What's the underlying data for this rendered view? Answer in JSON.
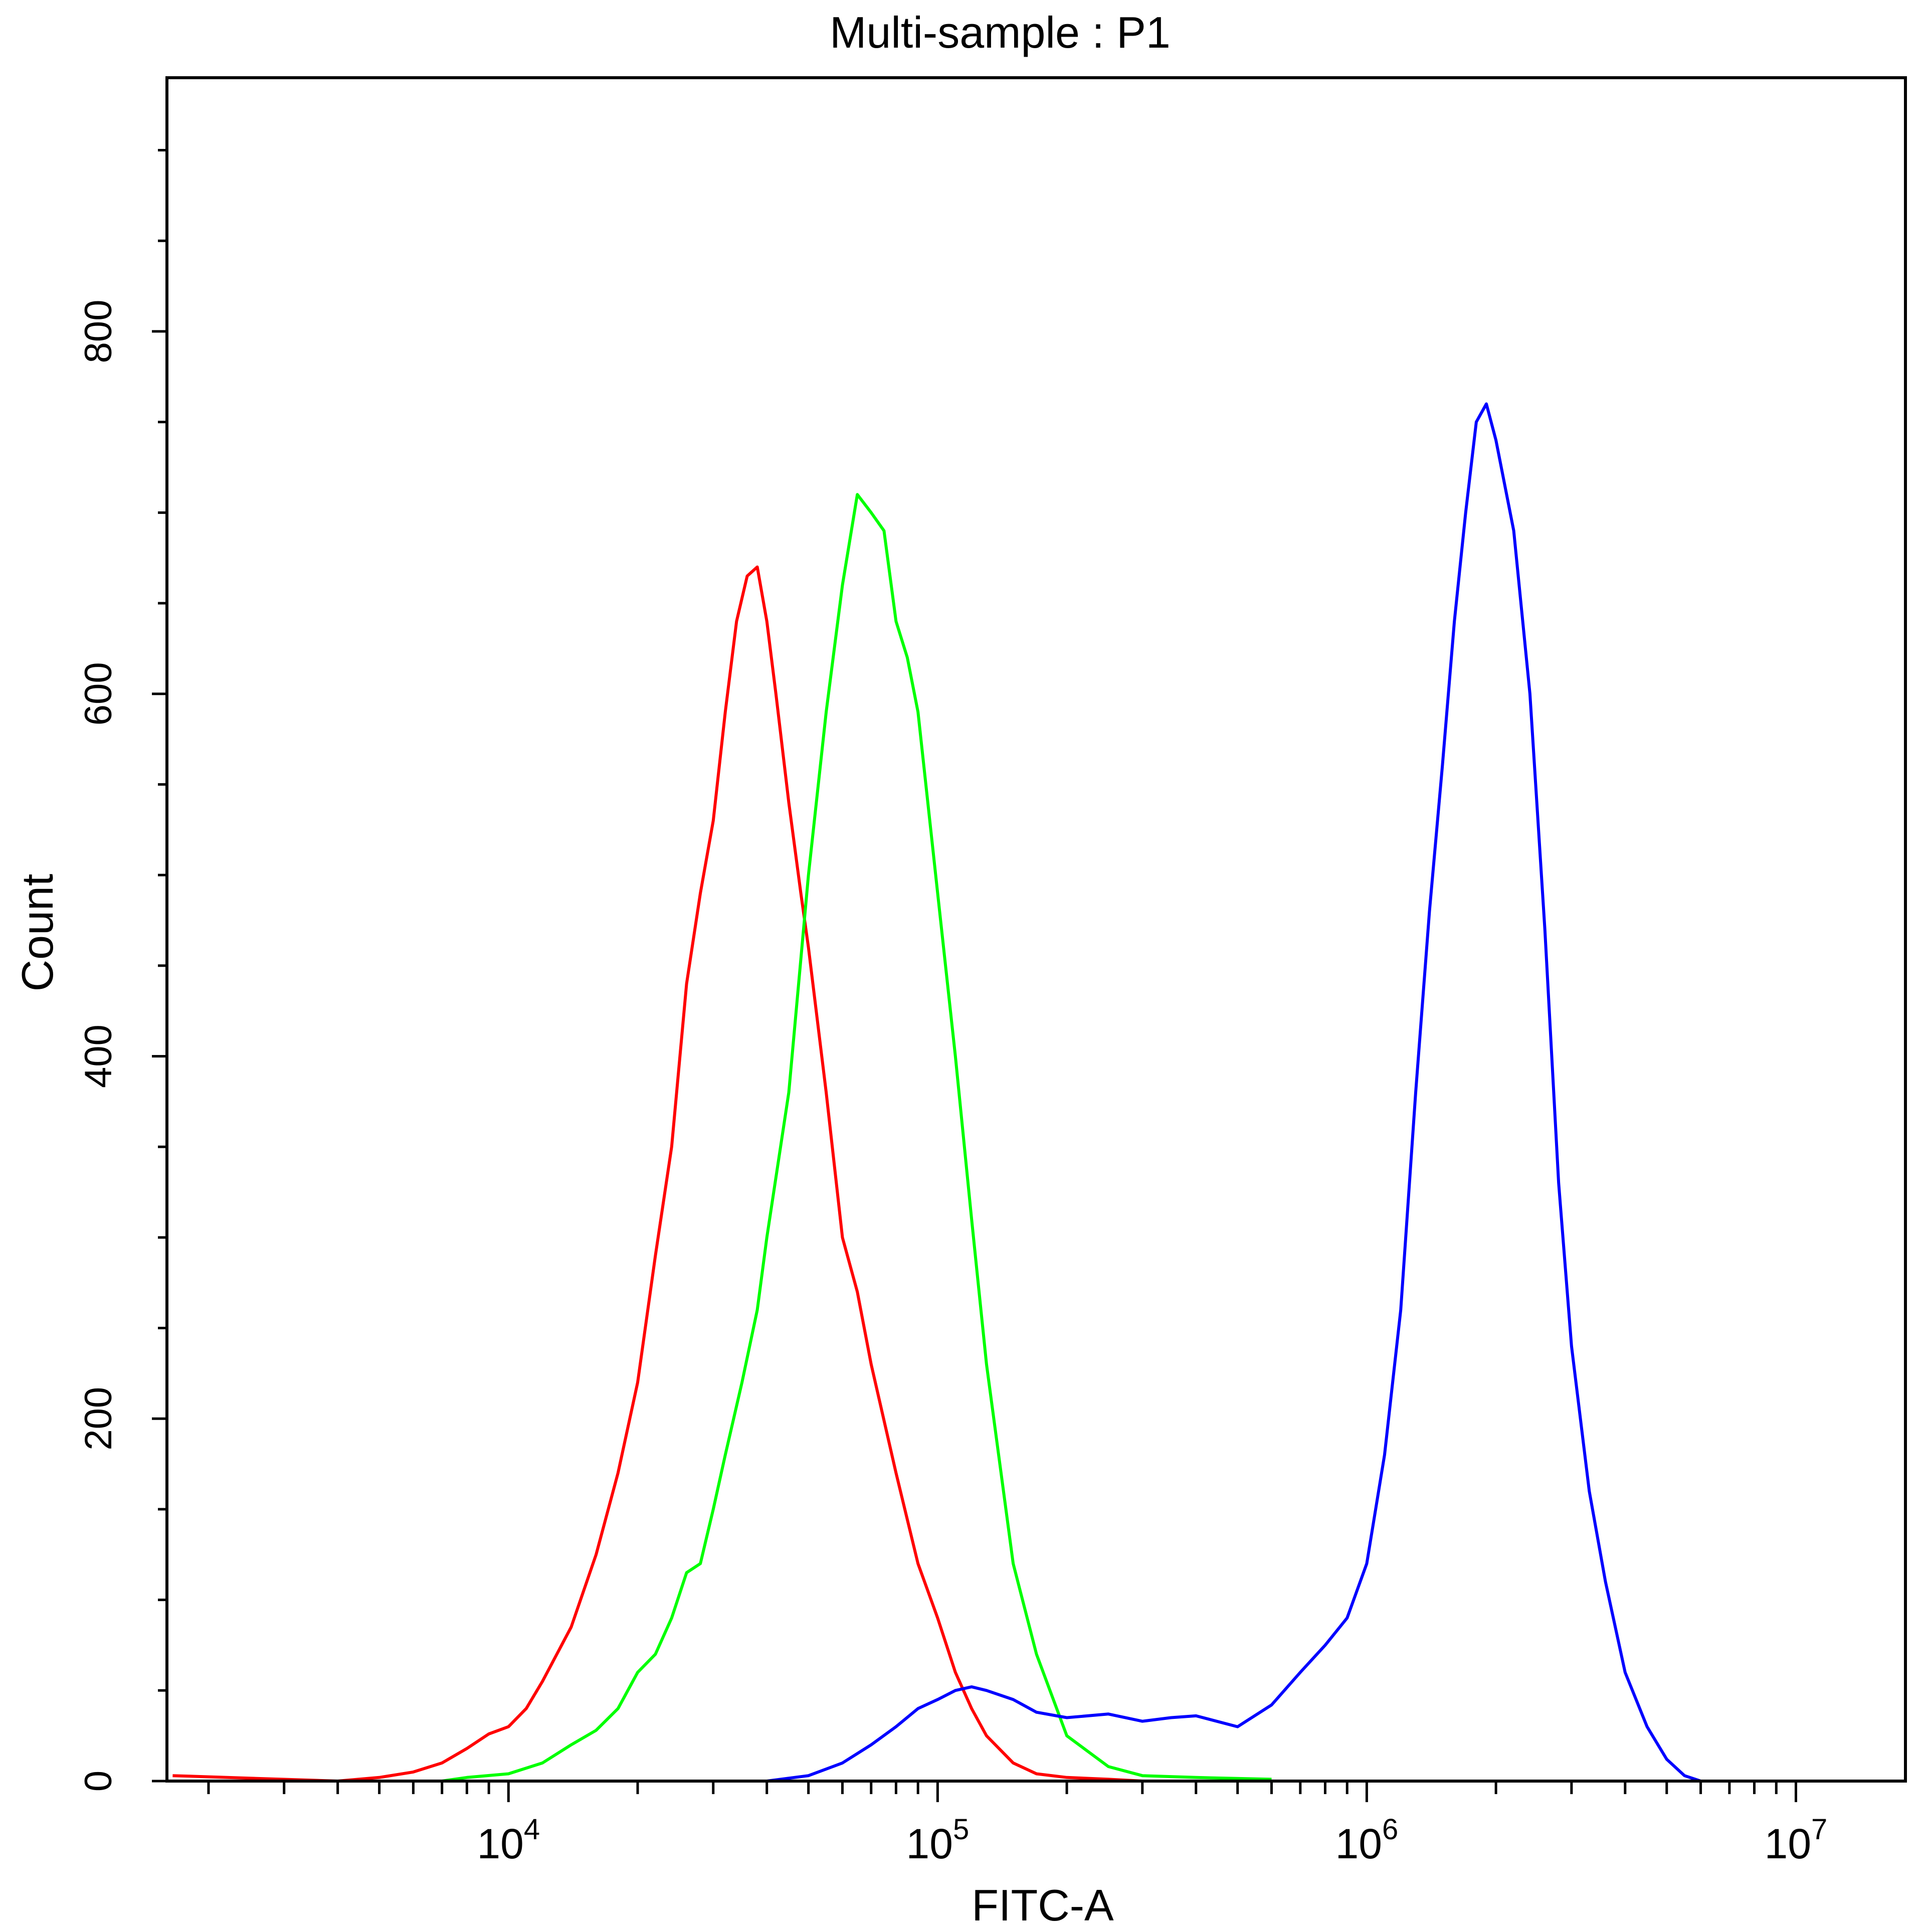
{
  "chart_data": {
    "type": "line",
    "title": "Multi-sample : P1",
    "xlabel": "FITC-A",
    "ylabel": "Count",
    "x_scale": "log10",
    "xlim": [
      1600,
      18000000
    ],
    "ylim": [
      0,
      940
    ],
    "y_ticks": [
      0,
      200,
      400,
      600,
      800
    ],
    "y_tick_labels": [
      "0",
      "200",
      "400",
      "600",
      "800"
    ],
    "x_decade_ticks": [
      {
        "value": 10000,
        "base": "10",
        "exp": "4"
      },
      {
        "value": 100000,
        "base": "10",
        "exp": "5"
      },
      {
        "value": 1000000,
        "base": "10",
        "exp": "6"
      },
      {
        "value": 10000000,
        "base": "10",
        "exp": "7"
      }
    ],
    "grid": false,
    "legend": "none",
    "series": [
      {
        "color": "#ff0000",
        "x": [
          1650,
          4000,
          5000,
          6000,
          7000,
          8000,
          9000,
          10000,
          11000,
          12000,
          14000,
          16000,
          18000,
          20000,
          22000,
          24000,
          26000,
          28000,
          30000,
          32000,
          34000,
          36000,
          38000,
          40000,
          42000,
          45000,
          48000,
          50000,
          55000,
          60000,
          65000,
          70000,
          80000,
          90000,
          100000,
          110000,
          120000,
          130000,
          150000,
          170000,
          200000,
          250000,
          300000
        ],
        "y": [
          3,
          0,
          2,
          5,
          10,
          18,
          26,
          30,
          40,
          55,
          85,
          125,
          170,
          220,
          290,
          350,
          440,
          490,
          530,
          590,
          640,
          665,
          670,
          640,
          600,
          540,
          490,
          460,
          380,
          300,
          270,
          230,
          170,
          120,
          90,
          60,
          40,
          25,
          10,
          4,
          2,
          1,
          0
        ]
      },
      {
        "color": "#00ff00",
        "x": [
          7000,
          8000,
          10000,
          12000,
          14000,
          16000,
          18000,
          20000,
          22000,
          24000,
          26000,
          28000,
          30000,
          32000,
          35000,
          38000,
          40000,
          45000,
          50000,
          55000,
          60000,
          65000,
          70000,
          75000,
          80000,
          85000,
          90000,
          100000,
          110000,
          120000,
          130000,
          150000,
          170000,
          200000,
          250000,
          300000,
          400000,
          600000
        ],
        "y": [
          0,
          2,
          4,
          10,
          20,
          28,
          40,
          60,
          70,
          90,
          115,
          120,
          150,
          180,
          220,
          260,
          300,
          380,
          500,
          590,
          660,
          710,
          700,
          690,
          640,
          620,
          590,
          490,
          400,
          310,
          230,
          120,
          70,
          25,
          8,
          3,
          2,
          1
        ]
      },
      {
        "color": "#0000ff",
        "x": [
          40000,
          50000,
          60000,
          70000,
          80000,
          90000,
          100000,
          110000,
          120000,
          130000,
          150000,
          170000,
          200000,
          250000,
          300000,
          350000,
          400000,
          500000,
          600000,
          700000,
          800000,
          900000,
          1000000,
          1100000,
          1200000,
          1300000,
          1400000,
          1500000,
          1600000,
          1700000,
          1800000,
          1900000,
          2000000,
          2200000,
          2400000,
          2600000,
          2800000,
          3000000,
          3300000,
          3600000,
          4000000,
          4500000,
          5000000,
          5500000,
          6000000
        ],
        "y": [
          0,
          3,
          10,
          20,
          30,
          40,
          45,
          50,
          52,
          50,
          45,
          38,
          35,
          37,
          33,
          35,
          36,
          30,
          42,
          60,
          75,
          90,
          120,
          180,
          260,
          380,
          480,
          560,
          640,
          700,
          750,
          760,
          740,
          690,
          600,
          470,
          330,
          240,
          160,
          110,
          60,
          30,
          12,
          3,
          0
        ]
      }
    ]
  }
}
